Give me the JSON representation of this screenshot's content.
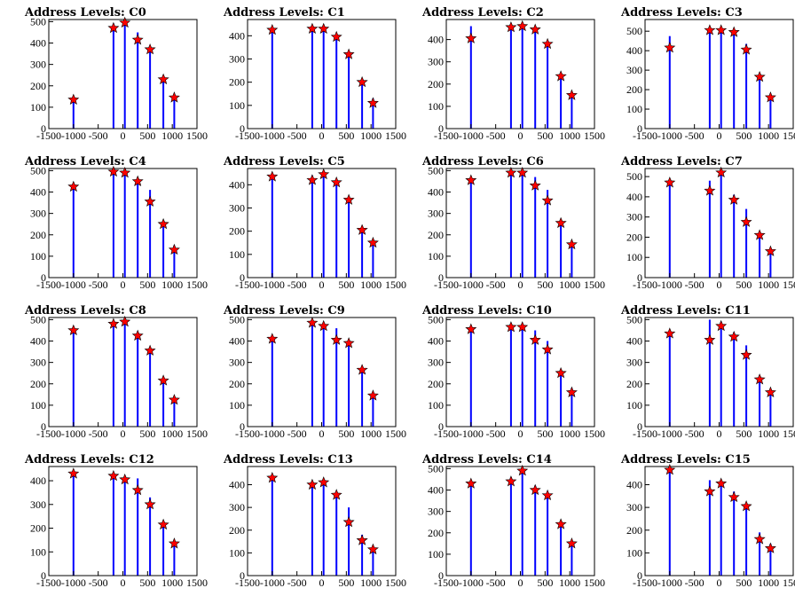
{
  "chart_data": [
    {
      "title": "Address Levels: C0",
      "type": "bar",
      "xlim": [
        -1500,
        1500
      ],
      "ylim": [
        0,
        510
      ],
      "yticks": [
        0,
        100,
        200,
        300,
        400,
        500
      ],
      "bars": [
        {
          "x": -1000,
          "y": 150
        },
        {
          "x": -190,
          "y": 490
        },
        {
          "x": 40,
          "y": 500
        },
        {
          "x": 300,
          "y": 450
        },
        {
          "x": 550,
          "y": 380
        },
        {
          "x": 820,
          "y": 225
        },
        {
          "x": 1040,
          "y": 140
        }
      ],
      "fits": [
        {
          "x": -1000,
          "y": 135
        },
        {
          "x": -190,
          "y": 470
        },
        {
          "x": 40,
          "y": 495
        },
        {
          "x": 300,
          "y": 415
        },
        {
          "x": 550,
          "y": 370
        },
        {
          "x": 820,
          "y": 230
        },
        {
          "x": 1040,
          "y": 145
        }
      ]
    },
    {
      "title": "Address Levels: C1",
      "type": "bar",
      "xlim": [
        -1500,
        1500
      ],
      "ylim": [
        0,
        470
      ],
      "yticks": [
        0,
        100,
        200,
        300,
        400
      ],
      "bars": [
        {
          "x": -1000,
          "y": 430
        },
        {
          "x": -190,
          "y": 440
        },
        {
          "x": 40,
          "y": 440
        },
        {
          "x": 300,
          "y": 390
        },
        {
          "x": 550,
          "y": 330
        },
        {
          "x": 820,
          "y": 200
        },
        {
          "x": 1040,
          "y": 130
        }
      ],
      "fits": [
        {
          "x": -1000,
          "y": 425
        },
        {
          "x": -190,
          "y": 430
        },
        {
          "x": 40,
          "y": 430
        },
        {
          "x": 300,
          "y": 395
        },
        {
          "x": 550,
          "y": 320
        },
        {
          "x": 820,
          "y": 200
        },
        {
          "x": 1040,
          "y": 110
        }
      ]
    },
    {
      "title": "Address Levels: C2",
      "type": "bar",
      "xlim": [
        -1500,
        1500
      ],
      "ylim": [
        0,
        490
      ],
      "yticks": [
        0,
        100,
        200,
        300,
        400
      ],
      "bars": [
        {
          "x": -1000,
          "y": 460
        },
        {
          "x": -190,
          "y": 460
        },
        {
          "x": 40,
          "y": 470
        },
        {
          "x": 300,
          "y": 450
        },
        {
          "x": 550,
          "y": 390
        },
        {
          "x": 820,
          "y": 230
        },
        {
          "x": 1040,
          "y": 160
        }
      ],
      "fits": [
        {
          "x": -1000,
          "y": 405
        },
        {
          "x": -190,
          "y": 455
        },
        {
          "x": 40,
          "y": 460
        },
        {
          "x": 300,
          "y": 445
        },
        {
          "x": 550,
          "y": 380
        },
        {
          "x": 820,
          "y": 235
        },
        {
          "x": 1040,
          "y": 150
        }
      ]
    },
    {
      "title": "Address Levels: C3",
      "type": "bar",
      "xlim": [
        -1500,
        1500
      ],
      "ylim": [
        0,
        560
      ],
      "yticks": [
        0,
        100,
        200,
        300,
        400,
        500
      ],
      "bars": [
        {
          "x": -1000,
          "y": 475
        },
        {
          "x": -190,
          "y": 510
        },
        {
          "x": 40,
          "y": 520
        },
        {
          "x": 300,
          "y": 490
        },
        {
          "x": 550,
          "y": 435
        },
        {
          "x": 820,
          "y": 270
        },
        {
          "x": 1040,
          "y": 180
        }
      ],
      "fits": [
        {
          "x": -1000,
          "y": 415
        },
        {
          "x": -190,
          "y": 505
        },
        {
          "x": 40,
          "y": 505
        },
        {
          "x": 300,
          "y": 495
        },
        {
          "x": 550,
          "y": 405
        },
        {
          "x": 820,
          "y": 265
        },
        {
          "x": 1040,
          "y": 160
        }
      ]
    },
    {
      "title": "Address Levels: C4",
      "type": "bar",
      "xlim": [
        -1500,
        1500
      ],
      "ylim": [
        0,
        510
      ],
      "yticks": [
        0,
        100,
        200,
        300,
        400,
        500
      ],
      "bars": [
        {
          "x": -1000,
          "y": 430
        },
        {
          "x": -190,
          "y": 510
        },
        {
          "x": 40,
          "y": 510
        },
        {
          "x": 300,
          "y": 460
        },
        {
          "x": 550,
          "y": 410
        },
        {
          "x": 820,
          "y": 260
        },
        {
          "x": 1040,
          "y": 150
        }
      ],
      "fits": [
        {
          "x": -1000,
          "y": 425
        },
        {
          "x": -190,
          "y": 495
        },
        {
          "x": 40,
          "y": 490
        },
        {
          "x": 300,
          "y": 450
        },
        {
          "x": 550,
          "y": 355
        },
        {
          "x": 820,
          "y": 250
        },
        {
          "x": 1040,
          "y": 130
        }
      ]
    },
    {
      "title": "Address Levels: C5",
      "type": "bar",
      "xlim": [
        -1500,
        1500
      ],
      "ylim": [
        0,
        470
      ],
      "yticks": [
        0,
        100,
        200,
        300,
        400
      ],
      "bars": [
        {
          "x": -1000,
          "y": 440
        },
        {
          "x": -190,
          "y": 440
        },
        {
          "x": 40,
          "y": 460
        },
        {
          "x": 300,
          "y": 420
        },
        {
          "x": 550,
          "y": 350
        },
        {
          "x": 820,
          "y": 210
        },
        {
          "x": 1040,
          "y": 160
        }
      ],
      "fits": [
        {
          "x": -1000,
          "y": 435
        },
        {
          "x": -190,
          "y": 420
        },
        {
          "x": 40,
          "y": 445
        },
        {
          "x": 300,
          "y": 410
        },
        {
          "x": 550,
          "y": 335
        },
        {
          "x": 820,
          "y": 205
        },
        {
          "x": 1040,
          "y": 150
        }
      ]
    },
    {
      "title": "Address Levels: C6",
      "type": "bar",
      "xlim": [
        -1500,
        1500
      ],
      "ylim": [
        0,
        510
      ],
      "yticks": [
        0,
        100,
        200,
        300,
        400,
        500
      ],
      "bars": [
        {
          "x": -1000,
          "y": 460
        },
        {
          "x": -190,
          "y": 500
        },
        {
          "x": 40,
          "y": 500
        },
        {
          "x": 300,
          "y": 470
        },
        {
          "x": 550,
          "y": 410
        },
        {
          "x": 820,
          "y": 260
        },
        {
          "x": 1040,
          "y": 170
        }
      ],
      "fits": [
        {
          "x": -1000,
          "y": 455
        },
        {
          "x": -190,
          "y": 490
        },
        {
          "x": 40,
          "y": 490
        },
        {
          "x": 300,
          "y": 430
        },
        {
          "x": 550,
          "y": 360
        },
        {
          "x": 820,
          "y": 255
        },
        {
          "x": 1040,
          "y": 155
        }
      ]
    },
    {
      "title": "Address Levels: C7",
      "type": "bar",
      "xlim": [
        -1500,
        1500
      ],
      "ylim": [
        0,
        540
      ],
      "yticks": [
        0,
        100,
        200,
        300,
        400,
        500
      ],
      "bars": [
        {
          "x": -1000,
          "y": 480
        },
        {
          "x": -190,
          "y": 480
        },
        {
          "x": 40,
          "y": 520
        },
        {
          "x": 300,
          "y": 410
        },
        {
          "x": 550,
          "y": 340
        },
        {
          "x": 820,
          "y": 220
        },
        {
          "x": 1040,
          "y": 140
        }
      ],
      "fits": [
        {
          "x": -1000,
          "y": 470
        },
        {
          "x": -190,
          "y": 430
        },
        {
          "x": 40,
          "y": 520
        },
        {
          "x": 300,
          "y": 385
        },
        {
          "x": 550,
          "y": 275
        },
        {
          "x": 820,
          "y": 210
        },
        {
          "x": 1040,
          "y": 130
        }
      ]
    },
    {
      "title": "Address Levels: C8",
      "type": "bar",
      "xlim": [
        -1500,
        1500
      ],
      "ylim": [
        0,
        510
      ],
      "yticks": [
        0,
        100,
        200,
        300,
        400,
        500
      ],
      "bars": [
        {
          "x": -1000,
          "y": 460
        },
        {
          "x": -190,
          "y": 490
        },
        {
          "x": 40,
          "y": 500
        },
        {
          "x": 300,
          "y": 440
        },
        {
          "x": 550,
          "y": 370
        },
        {
          "x": 820,
          "y": 220
        },
        {
          "x": 1040,
          "y": 140
        }
      ],
      "fits": [
        {
          "x": -1000,
          "y": 450
        },
        {
          "x": -190,
          "y": 480
        },
        {
          "x": 40,
          "y": 490
        },
        {
          "x": 300,
          "y": 425
        },
        {
          "x": 550,
          "y": 355
        },
        {
          "x": 820,
          "y": 215
        },
        {
          "x": 1040,
          "y": 125
        }
      ]
    },
    {
      "title": "Address Levels: C9",
      "type": "bar",
      "xlim": [
        -1500,
        1500
      ],
      "ylim": [
        0,
        510
      ],
      "yticks": [
        0,
        100,
        200,
        300,
        400,
        500
      ],
      "bars": [
        {
          "x": -1000,
          "y": 420
        },
        {
          "x": -190,
          "y": 500
        },
        {
          "x": 40,
          "y": 480
        },
        {
          "x": 300,
          "y": 460
        },
        {
          "x": 550,
          "y": 400
        },
        {
          "x": 820,
          "y": 280
        },
        {
          "x": 1040,
          "y": 160
        }
      ],
      "fits": [
        {
          "x": -1000,
          "y": 410
        },
        {
          "x": -190,
          "y": 485
        },
        {
          "x": 40,
          "y": 470
        },
        {
          "x": 300,
          "y": 405
        },
        {
          "x": 550,
          "y": 390
        },
        {
          "x": 820,
          "y": 265
        },
        {
          "x": 1040,
          "y": 145
        }
      ]
    },
    {
      "title": "Address Levels: C10",
      "type": "bar",
      "xlim": [
        -1500,
        1500
      ],
      "ylim": [
        0,
        510
      ],
      "yticks": [
        0,
        100,
        200,
        300,
        400,
        500
      ],
      "bars": [
        {
          "x": -1000,
          "y": 460
        },
        {
          "x": -190,
          "y": 480
        },
        {
          "x": 40,
          "y": 480
        },
        {
          "x": 300,
          "y": 450
        },
        {
          "x": 550,
          "y": 400
        },
        {
          "x": 820,
          "y": 260
        },
        {
          "x": 1040,
          "y": 180
        }
      ],
      "fits": [
        {
          "x": -1000,
          "y": 455
        },
        {
          "x": -190,
          "y": 465
        },
        {
          "x": 40,
          "y": 465
        },
        {
          "x": 300,
          "y": 405
        },
        {
          "x": 550,
          "y": 360
        },
        {
          "x": 820,
          "y": 250
        },
        {
          "x": 1040,
          "y": 160
        }
      ]
    },
    {
      "title": "Address Levels: C11",
      "type": "bar",
      "xlim": [
        -1500,
        1500
      ],
      "ylim": [
        0,
        510
      ],
      "yticks": [
        0,
        100,
        200,
        300,
        400,
        500
      ],
      "bars": [
        {
          "x": -1000,
          "y": 440
        },
        {
          "x": -190,
          "y": 500
        },
        {
          "x": 40,
          "y": 490
        },
        {
          "x": 300,
          "y": 440
        },
        {
          "x": 550,
          "y": 380
        },
        {
          "x": 820,
          "y": 230
        },
        {
          "x": 1040,
          "y": 170
        }
      ],
      "fits": [
        {
          "x": -1000,
          "y": 435
        },
        {
          "x": -190,
          "y": 405
        },
        {
          "x": 40,
          "y": 470
        },
        {
          "x": 300,
          "y": 420
        },
        {
          "x": 550,
          "y": 335
        },
        {
          "x": 820,
          "y": 220
        },
        {
          "x": 1040,
          "y": 160
        }
      ]
    },
    {
      "title": "Address Levels: C12",
      "type": "bar",
      "xlim": [
        -1500,
        1500
      ],
      "ylim": [
        0,
        460
      ],
      "yticks": [
        0,
        100,
        200,
        300,
        400
      ],
      "bars": [
        {
          "x": -1000,
          "y": 440
        },
        {
          "x": -190,
          "y": 420
        },
        {
          "x": 40,
          "y": 420
        },
        {
          "x": 300,
          "y": 410
        },
        {
          "x": 550,
          "y": 330
        },
        {
          "x": 820,
          "y": 220
        },
        {
          "x": 1040,
          "y": 150
        }
      ],
      "fits": [
        {
          "x": -1000,
          "y": 430
        },
        {
          "x": -190,
          "y": 420
        },
        {
          "x": 40,
          "y": 405
        },
        {
          "x": 300,
          "y": 360
        },
        {
          "x": 550,
          "y": 300
        },
        {
          "x": 820,
          "y": 215
        },
        {
          "x": 1040,
          "y": 135
        }
      ]
    },
    {
      "title": "Address Levels: C13",
      "type": "bar",
      "xlim": [
        -1500,
        1500
      ],
      "ylim": [
        0,
        480
      ],
      "yticks": [
        0,
        100,
        200,
        300,
        400
      ],
      "bars": [
        {
          "x": -1000,
          "y": 440
        },
        {
          "x": -190,
          "y": 410
        },
        {
          "x": 40,
          "y": 420
        },
        {
          "x": 300,
          "y": 370
        },
        {
          "x": 550,
          "y": 300
        },
        {
          "x": 820,
          "y": 180
        },
        {
          "x": 1040,
          "y": 130
        }
      ],
      "fits": [
        {
          "x": -1000,
          "y": 430
        },
        {
          "x": -190,
          "y": 400
        },
        {
          "x": 40,
          "y": 410
        },
        {
          "x": 300,
          "y": 355
        },
        {
          "x": 550,
          "y": 235
        },
        {
          "x": 820,
          "y": 155
        },
        {
          "x": 1040,
          "y": 115
        }
      ]
    },
    {
      "title": "Address Levels: C14",
      "type": "bar",
      "xlim": [
        -1500,
        1500
      ],
      "ylim": [
        0,
        510
      ],
      "yticks": [
        0,
        100,
        200,
        300,
        400,
        500
      ],
      "bars": [
        {
          "x": -1000,
          "y": 440
        },
        {
          "x": -190,
          "y": 460
        },
        {
          "x": 40,
          "y": 500
        },
        {
          "x": 300,
          "y": 420
        },
        {
          "x": 550,
          "y": 390
        },
        {
          "x": 820,
          "y": 250
        },
        {
          "x": 1040,
          "y": 160
        }
      ],
      "fits": [
        {
          "x": -1000,
          "y": 430
        },
        {
          "x": -190,
          "y": 440
        },
        {
          "x": 40,
          "y": 490
        },
        {
          "x": 300,
          "y": 400
        },
        {
          "x": 550,
          "y": 375
        },
        {
          "x": 820,
          "y": 240
        },
        {
          "x": 1040,
          "y": 150
        }
      ]
    },
    {
      "title": "Address Levels: C15",
      "type": "bar",
      "xlim": [
        -1500,
        1500
      ],
      "ylim": [
        0,
        480
      ],
      "yticks": [
        0,
        100,
        200,
        300,
        400
      ],
      "bars": [
        {
          "x": -1000,
          "y": 470
        },
        {
          "x": -190,
          "y": 420
        },
        {
          "x": 40,
          "y": 420
        },
        {
          "x": 300,
          "y": 370
        },
        {
          "x": 550,
          "y": 310
        },
        {
          "x": 820,
          "y": 190
        },
        {
          "x": 1040,
          "y": 140
        }
      ],
      "fits": [
        {
          "x": -1000,
          "y": 465
        },
        {
          "x": -190,
          "y": 370
        },
        {
          "x": 40,
          "y": 405
        },
        {
          "x": 300,
          "y": 345
        },
        {
          "x": 550,
          "y": 305
        },
        {
          "x": 820,
          "y": 160
        },
        {
          "x": 1040,
          "y": 120
        }
      ]
    }
  ],
  "xticks": [
    -1500,
    -1000,
    -500,
    0,
    500,
    1000,
    1500
  ],
  "colors": {
    "bars": "#0000ff",
    "markers": "#ff0000",
    "marker_outline": "#000000",
    "axis": "#000000"
  }
}
